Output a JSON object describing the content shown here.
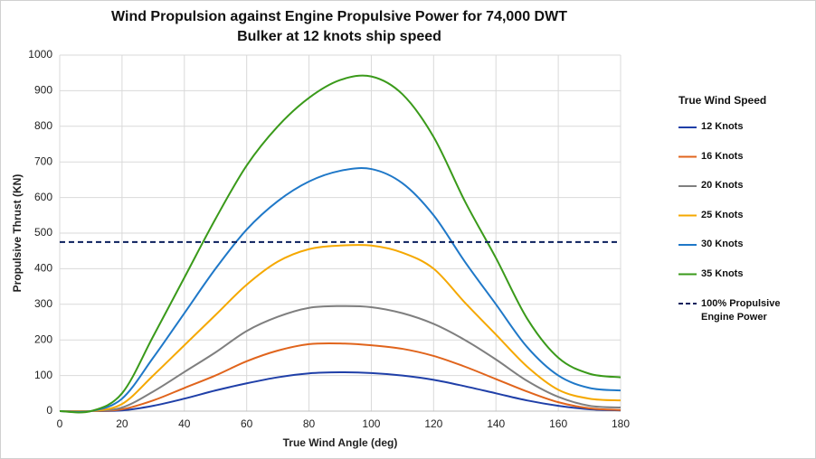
{
  "chart_data": {
    "type": "line",
    "title": "Wind Propulsion against Engine Propulsive Power for 74,000 DWT Bulker at 12 knots ship speed",
    "x_label": "True Wind Angle (deg)",
    "y_label": "Propulsive Thrust (KN)",
    "legend_title": "True Wind Speed",
    "x": [
      0,
      10,
      20,
      30,
      40,
      50,
      60,
      70,
      80,
      90,
      100,
      110,
      120,
      130,
      140,
      150,
      160,
      170,
      180
    ],
    "series": [
      {
        "name": "12 Knots",
        "color": "#1f3fa8",
        "values": [
          0,
          0,
          2,
          15,
          35,
          58,
          78,
          95,
          106,
          109,
          107,
          100,
          88,
          70,
          50,
          30,
          15,
          5,
          2
        ]
      },
      {
        "name": "16 Knots",
        "color": "#e0641c",
        "values": [
          0,
          0,
          5,
          30,
          65,
          100,
          140,
          170,
          188,
          190,
          185,
          175,
          155,
          125,
          90,
          55,
          25,
          8,
          3
        ]
      },
      {
        "name": "20 Knots",
        "color": "#7f7f7f",
        "values": [
          0,
          0,
          10,
          55,
          110,
          165,
          225,
          265,
          290,
          295,
          292,
          275,
          245,
          200,
          145,
          85,
          40,
          15,
          10
        ]
      },
      {
        "name": "25 Knots",
        "color": "#f5a800",
        "values": [
          0,
          0,
          20,
          100,
          185,
          270,
          355,
          420,
          455,
          465,
          465,
          445,
          400,
          305,
          215,
          125,
          60,
          35,
          30
        ]
      },
      {
        "name": "30 Knots",
        "color": "#1f78c8",
        "values": [
          0,
          0,
          35,
          150,
          275,
          400,
          510,
          590,
          645,
          675,
          680,
          640,
          550,
          420,
          300,
          180,
          100,
          65,
          58
        ]
      },
      {
        "name": "35 Knots",
        "color": "#3a9a1a",
        "values": [
          0,
          0,
          50,
          210,
          375,
          540,
          690,
          800,
          880,
          930,
          940,
          890,
          770,
          590,
          430,
          260,
          150,
          105,
          95
        ]
      }
    ],
    "reference_lines": [
      {
        "name": "100% Propulsive Engine Power",
        "value": 475,
        "color": "#0a1f5c"
      }
    ],
    "xlim": [
      0,
      180
    ],
    "xticks": [
      0,
      20,
      40,
      60,
      80,
      100,
      120,
      140,
      160,
      180
    ],
    "ylim": [
      0,
      1000
    ],
    "yticks": [
      0,
      100,
      200,
      300,
      400,
      500,
      600,
      700,
      800,
      900,
      1000
    ],
    "grid": true
  }
}
